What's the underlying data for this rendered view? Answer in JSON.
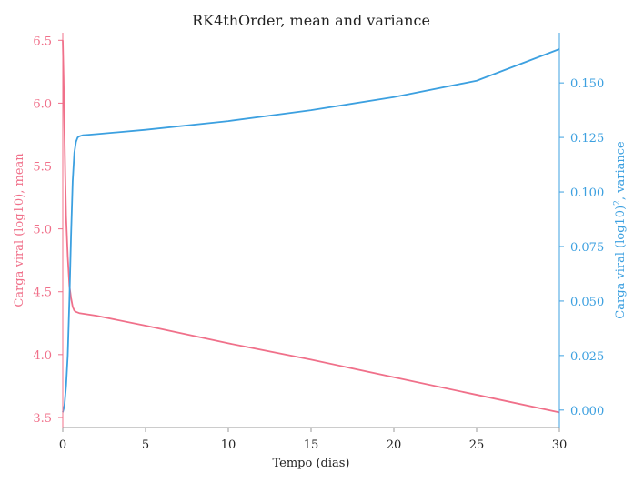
{
  "chart_data": {
    "type": "line",
    "title": "RK4thOrder, mean and variance",
    "xlabel": "Tempo (dias)",
    "xlim": [
      0,
      30
    ],
    "xticks": [
      0,
      5,
      10,
      15,
      20,
      25,
      30
    ],
    "left_axis": {
      "label": "Carga viral (log10), mean",
      "color": "#f0708a",
      "ylim": [
        3.42,
        6.56
      ],
      "ticks": [
        "3.5",
        "4.0",
        "4.5",
        "5.0",
        "5.5",
        "6.0",
        "6.5"
      ]
    },
    "right_axis": {
      "label_main": "Carga viral (log10)",
      "label_sup": "2",
      "label_tail": ", variance",
      "color": "#3ca0e0",
      "ylim": [
        -0.008,
        0.173
      ],
      "ticks": [
        "0.000",
        "0.025",
        "0.050",
        "0.075",
        "0.100",
        "0.125",
        "0.150"
      ]
    },
    "series": [
      {
        "axis": "left",
        "x": [
          0,
          0.05,
          0.1,
          0.15,
          0.2,
          0.3,
          0.4,
          0.5,
          0.6,
          0.7,
          0.8,
          1.0,
          2,
          5,
          10,
          15,
          20,
          25,
          30
        ],
        "values": [
          6.5,
          6.2,
          5.8,
          5.42,
          5.1,
          4.78,
          4.55,
          4.45,
          4.38,
          4.35,
          4.34,
          4.33,
          4.31,
          4.23,
          4.09,
          3.96,
          3.82,
          3.68,
          3.54
        ]
      },
      {
        "axis": "right",
        "x": [
          0,
          0.1,
          0.2,
          0.3,
          0.4,
          0.5,
          0.6,
          0.7,
          0.8,
          0.9,
          1.0,
          1.2,
          1.5,
          2,
          5,
          10,
          15,
          20,
          25,
          30
        ],
        "values": [
          -0.001,
          0.002,
          0.011,
          0.025,
          0.05,
          0.08,
          0.105,
          0.118,
          0.123,
          0.125,
          0.1255,
          0.126,
          0.1262,
          0.1265,
          0.1285,
          0.1325,
          0.1375,
          0.1435,
          0.151,
          0.1655
        ]
      }
    ],
    "axis_color": "#999999",
    "text_color": "#222222"
  }
}
